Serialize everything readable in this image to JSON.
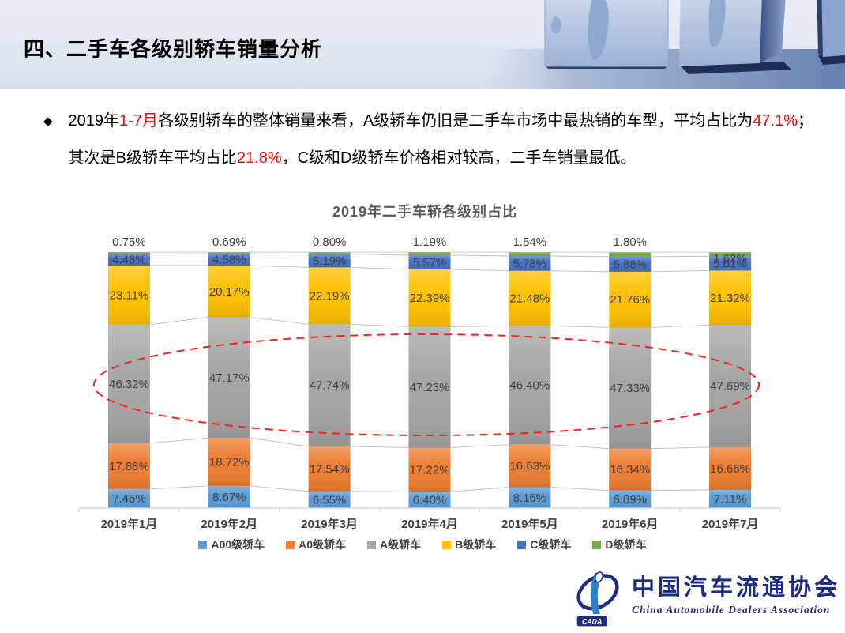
{
  "header": {
    "title": "四、二手车各级别轿车销量分析"
  },
  "intro": {
    "bullet": "◆",
    "runs": [
      {
        "text": "2019年",
        "color": "#000000"
      },
      {
        "text": "1-7月",
        "color": "#ff0000"
      },
      {
        "text": "各级别轿车的整体销量来看，A级轿车仍旧是二手车市场中最热销的车型，平均占比为",
        "color": "#000000"
      },
      {
        "text": "47.1%",
        "color": "#ff0000"
      },
      {
        "text": "；其次是B级轿车平均占比",
        "color": "#000000"
      },
      {
        "text": "21.8%",
        "color": "#ff0000"
      },
      {
        "text": "，C级和D级轿车价格相对较高，二手车销量最低。",
        "color": "#000000"
      }
    ]
  },
  "chart_data": {
    "type": "bar",
    "subtype": "100%-stacked-column",
    "title": "2019年二手车轿各级别占比",
    "categories": [
      "2019年1月",
      "2019年2月",
      "2019年3月",
      "2019年4月",
      "2019年5月",
      "2019年6月",
      "2019年7月"
    ],
    "series": [
      {
        "name": "A00级轿车",
        "color": "#5B9BD5",
        "values": [
          7.46,
          8.67,
          6.55,
          6.4,
          8.16,
          6.89,
          7.11
        ]
      },
      {
        "name": "A0级轿车",
        "color": "#ED7D31",
        "values": [
          17.88,
          18.72,
          17.54,
          17.22,
          16.63,
          16.34,
          16.66
        ]
      },
      {
        "name": "A级轿车",
        "color": "#A5A5A5",
        "values": [
          46.32,
          47.17,
          47.74,
          47.23,
          46.4,
          47.33,
          47.69
        ]
      },
      {
        "name": "B级轿车",
        "color": "#FFC000",
        "values": [
          23.11,
          20.17,
          22.19,
          22.39,
          21.48,
          21.76,
          21.32
        ]
      },
      {
        "name": "C级轿车",
        "color": "#4472C4",
        "values": [
          4.48,
          4.58,
          5.19,
          5.57,
          5.78,
          5.88,
          5.61
        ]
      },
      {
        "name": "D级轿车",
        "color": "#70AD47",
        "values": [
          0.75,
          0.69,
          0.8,
          1.19,
          1.54,
          1.8,
          1.62
        ]
      }
    ],
    "value_suffix": "%",
    "ylim": [
      0,
      100
    ],
    "grid": false,
    "legend_position": "bottom",
    "label_color": "#404040",
    "axis_color": "#D9D9D9",
    "connector_color": "#C3C3C3",
    "annotation": {
      "shape": "dashed-ellipse",
      "color": "#FF2020",
      "target_series": "A级轿车"
    }
  },
  "logo": {
    "badge": "CADA",
    "cn": "中国汽车流通协会",
    "en": "China Automobile Dealers Association"
  }
}
